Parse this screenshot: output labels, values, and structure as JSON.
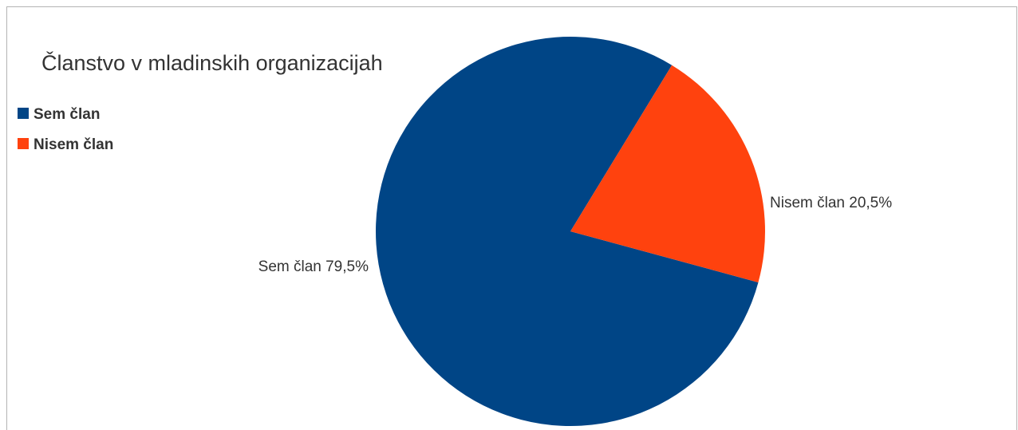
{
  "chart_data": {
    "type": "pie",
    "title": "Članstvo v mladinskih organizacijah",
    "categories": [
      "Sem član",
      "Nisem član"
    ],
    "values": [
      79.5,
      20.5
    ],
    "colors": [
      "#004586",
      "#ff420e"
    ],
    "data_labels": [
      "Sem član 79,5%",
      "Nisem član 20,5%"
    ],
    "legend": {
      "placement": "top-left",
      "entries": [
        "Sem član",
        "Nisem član"
      ]
    }
  }
}
